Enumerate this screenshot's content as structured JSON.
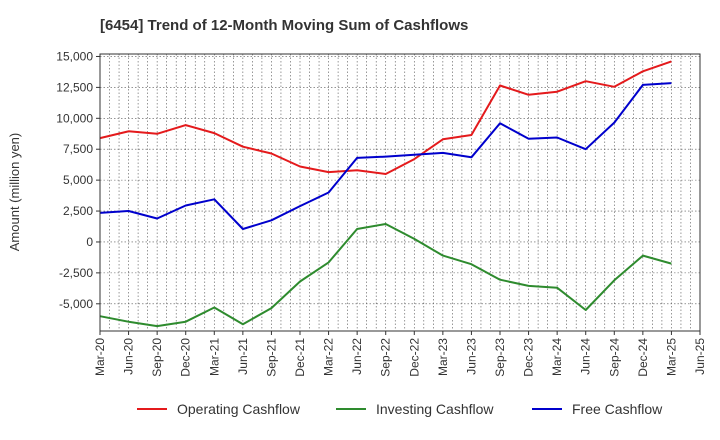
{
  "chart_data": {
    "type": "line",
    "title": "[6454]  Trend of 12-Month Moving Sum of Cashflows",
    "xlabel": "",
    "ylabel": "Amount (million yen)",
    "ylim": [
      -7200,
      15200
    ],
    "y_ticks": [
      15000,
      12500,
      10000,
      7500,
      5000,
      2500,
      0,
      -2500,
      -5000
    ],
    "y_tick_labels": [
      "15,000",
      "12,500",
      "10,000",
      "7,500",
      "5,000",
      "2,500",
      "0",
      "-2,500",
      "-5,000"
    ],
    "x_tick_labels": [
      "Mar-20",
      "Jun-20",
      "Sep-20",
      "Dec-20",
      "Mar-21",
      "Jun-21",
      "Sep-21",
      "Dec-21",
      "Mar-22",
      "Jun-22",
      "Sep-22",
      "Dec-22",
      "Mar-23",
      "Jun-23",
      "Sep-23",
      "Dec-23",
      "Mar-24",
      "Jun-24",
      "Sep-24",
      "Dec-24",
      "Mar-25",
      "Jun-25"
    ],
    "grid": true,
    "legend_position": "bottom",
    "series": [
      {
        "name": "Operating Cashflow",
        "color": "#e41a1c",
        "values": [
          8400,
          8950,
          8750,
          9450,
          8800,
          7700,
          7150,
          6100,
          5650,
          5800,
          5500,
          6700,
          8300,
          8650,
          12650,
          11900,
          12150,
          13000,
          12550,
          13800,
          14600
        ]
      },
      {
        "name": "Investing Cashflow",
        "color": "#2e8b2e",
        "values": [
          -6000,
          -6450,
          -6800,
          -6450,
          -5300,
          -6650,
          -5350,
          -3200,
          -1650,
          1050,
          1450,
          250,
          -1100,
          -1800,
          -3050,
          -3550,
          -3700,
          -5500,
          -3100,
          -1100,
          -1750
        ]
      },
      {
        "name": "Free Cashflow",
        "color": "#0000cc",
        "values": [
          2350,
          2500,
          1900,
          2950,
          3450,
          1050,
          1750,
          2900,
          4000,
          6800,
          6900,
          7050,
          7200,
          6850,
          9600,
          8350,
          8450,
          7500,
          9650,
          12700,
          12850
        ]
      }
    ]
  }
}
